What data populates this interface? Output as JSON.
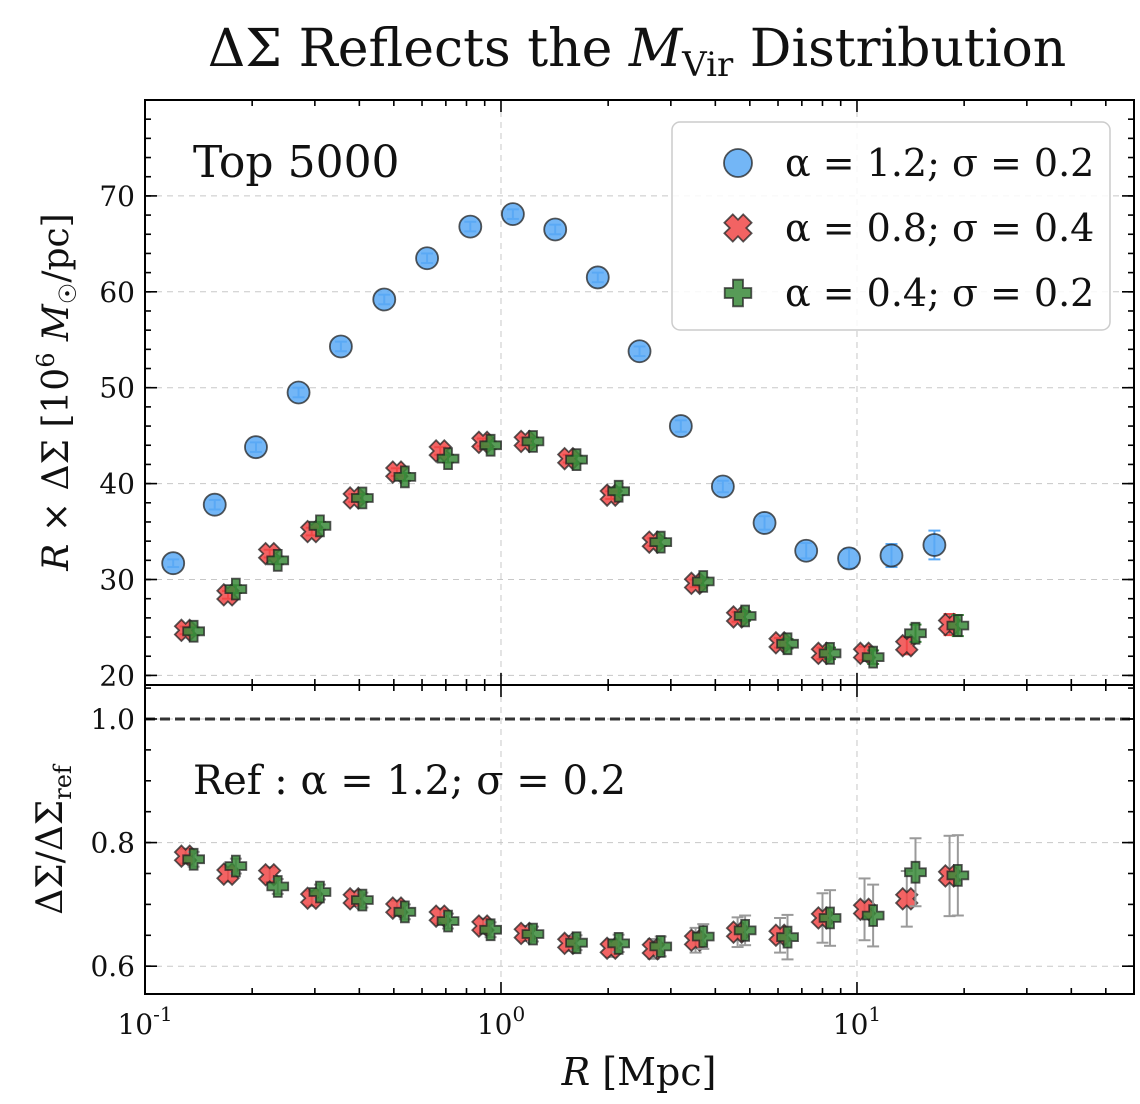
{
  "chart_data": {
    "title": "ΔΣ Reflects the M_Vir Distribution",
    "type": "scatter",
    "xlabel": "R [Mpc]",
    "xscale": "log",
    "xlim": [
      0.1,
      60
    ],
    "x_ticks": [
      {
        "value": 0.1,
        "label": "10^-1"
      },
      {
        "value": 1,
        "label": "10^0"
      },
      {
        "value": 10,
        "label": "10^1"
      }
    ],
    "grid": true,
    "panels": [
      {
        "name": "top",
        "ylabel": "R × ΔΣ [10^6 M☉/pc]",
        "ylim": [
          19,
          80
        ],
        "y_ticks": [
          20,
          30,
          40,
          50,
          60,
          70
        ],
        "annotation": "Top 5000",
        "legend": {
          "placement": "top-right",
          "entries": [
            "α = 1.2; σ = 0.2",
            "α = 0.8; σ = 0.4",
            "α = 0.4; σ = 0.2"
          ]
        },
        "series": [
          {
            "name": "α = 1.2; σ = 0.2",
            "marker": "circle",
            "color": "#5aa9f5",
            "x": [
              0.12,
              0.157,
              0.205,
              0.27,
              0.355,
              0.47,
              0.62,
              0.82,
              1.08,
              1.42,
              1.87,
              2.45,
              3.2,
              4.2,
              5.5,
              7.2,
              9.5,
              12.5,
              16.5
            ],
            "y": [
              31.7,
              37.8,
              43.8,
              49.5,
              54.3,
              59.2,
              63.5,
              66.8,
              68.1,
              66.5,
              61.5,
              53.8,
              46.0,
              39.7,
              35.9,
              33.0,
              32.2,
              32.5,
              33.6
            ],
            "err": [
              0.4,
              0.5,
              0.5,
              0.5,
              0.5,
              0.5,
              0.5,
              0.5,
              0.5,
              0.5,
              0.5,
              0.5,
              0.6,
              0.6,
              0.7,
              0.8,
              1.0,
              1.2,
              1.5
            ]
          },
          {
            "name": "α = 0.8; σ = 0.4",
            "marker": "x",
            "color": "#f04848",
            "x": [
              0.13,
              0.171,
              0.224,
              0.294,
              0.387,
              0.51,
              0.675,
              0.89,
              1.17,
              1.55,
              2.04,
              2.68,
              3.52,
              4.62,
              6.08,
              8.0,
              10.5,
              13.8,
              18.2
            ],
            "y": [
              24.7,
              28.4,
              32.7,
              35.0,
              38.5,
              41.2,
              43.4,
              44.3,
              44.4,
              42.6,
              38.8,
              33.9,
              29.6,
              26.1,
              23.4,
              22.3,
              22.3,
              23.1,
              25.3
            ],
            "err": [
              0.4,
              0.4,
              0.4,
              0.4,
              0.4,
              0.4,
              0.4,
              0.4,
              0.4,
              0.4,
              0.4,
              0.4,
              0.4,
              0.5,
              0.5,
              0.6,
              0.7,
              0.9,
              1.1
            ]
          },
          {
            "name": "α = 0.4; σ = 0.2",
            "marker": "plus",
            "color": "#3a8a3a",
            "x": [
              0.137,
              0.18,
              0.236,
              0.31,
              0.408,
              0.537,
              0.71,
              0.935,
              1.23,
              1.63,
              2.14,
              2.81,
              3.7,
              4.85,
              6.38,
              8.4,
              11.1,
              14.6,
              19.2
            ],
            "y": [
              24.6,
              29.0,
              32.0,
              35.6,
              38.5,
              40.7,
              42.6,
              44.0,
              44.4,
              42.5,
              39.2,
              33.9,
              29.8,
              26.2,
              23.3,
              22.3,
              21.9,
              24.4,
              25.2
            ],
            "err": [
              0.4,
              0.4,
              0.4,
              0.4,
              0.4,
              0.4,
              0.4,
              0.4,
              0.4,
              0.4,
              0.4,
              0.4,
              0.4,
              0.5,
              0.5,
              0.6,
              0.7,
              0.9,
              1.1
            ]
          }
        ]
      },
      {
        "name": "bottom",
        "ylabel": "ΔΣ / ΔΣ_ref",
        "ylim": [
          0.555,
          1.055
        ],
        "y_ticks": [
          0.6,
          0.8,
          1.0
        ],
        "annotation": "Ref : α = 1.2; σ = 0.2",
        "reference_line": 1.0,
        "series": [
          {
            "name": "α = 0.8; σ = 0.4",
            "marker": "x",
            "color": "#f04848",
            "x": [
              0.13,
              0.171,
              0.224,
              0.294,
              0.387,
              0.51,
              0.675,
              0.89,
              1.17,
              1.55,
              2.04,
              2.68,
              3.52,
              4.62,
              6.08,
              8.0,
              10.5,
              13.8,
              18.2
            ],
            "y": [
              0.778,
              0.749,
              0.748,
              0.71,
              0.709,
              0.694,
              0.681,
              0.665,
              0.653,
              0.637,
              0.629,
              0.628,
              0.642,
              0.655,
              0.65,
              0.678,
              0.692,
              0.709,
              0.746
            ],
            "err": [
              0.012,
              0.012,
              0.012,
              0.012,
              0.012,
              0.012,
              0.012,
              0.012,
              0.012,
              0.012,
              0.014,
              0.016,
              0.02,
              0.024,
              0.028,
              0.04,
              0.05,
              0.045,
              0.065
            ]
          },
          {
            "name": "α = 0.4; σ = 0.2",
            "marker": "plus",
            "color": "#3a8a3a",
            "x": [
              0.137,
              0.18,
              0.236,
              0.31,
              0.408,
              0.537,
              0.71,
              0.935,
              1.23,
              1.63,
              2.14,
              2.81,
              3.7,
              4.85,
              6.38,
              8.4,
              11.1,
              14.6,
              19.2
            ],
            "y": [
              0.773,
              0.762,
              0.729,
              0.72,
              0.707,
              0.688,
              0.673,
              0.659,
              0.652,
              0.638,
              0.637,
              0.632,
              0.648,
              0.658,
              0.647,
              0.678,
              0.682,
              0.752,
              0.747
            ],
            "err": [
              0.012,
              0.012,
              0.012,
              0.012,
              0.012,
              0.012,
              0.012,
              0.012,
              0.012,
              0.012,
              0.014,
              0.016,
              0.02,
              0.024,
              0.036,
              0.045,
              0.05,
              0.055,
              0.065
            ]
          }
        ]
      }
    ]
  }
}
